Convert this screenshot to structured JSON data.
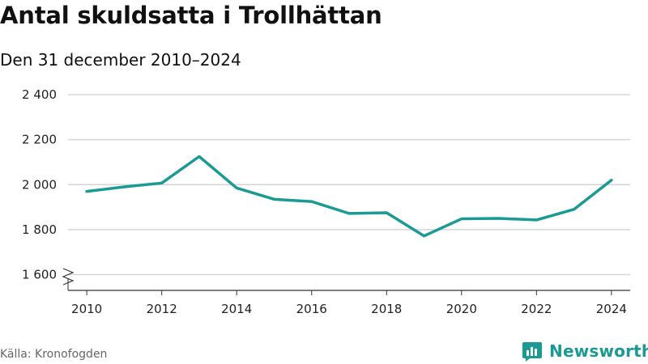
{
  "title": "Antal skuldsatta i Trollhättan",
  "subtitle": "Den 31 december 2010–2024",
  "source": "Källa: Kronofogden",
  "brand": {
    "name": "Newsworthy",
    "icon": "bar-chart-logo-icon",
    "color": "#1a9a93"
  },
  "chart_data": {
    "type": "line",
    "x": [
      2010,
      2011,
      2012,
      2013,
      2014,
      2015,
      2016,
      2017,
      2018,
      2019,
      2020,
      2021,
      2022,
      2023,
      2024
    ],
    "series": [
      {
        "values": [
          1970,
          1990,
          2007,
          2125,
          1985,
          1935,
          1925,
          1872,
          1875,
          1772,
          1848,
          1850,
          1843,
          1890,
          2020
        ]
      }
    ],
    "xticks": [
      2010,
      2012,
      2014,
      2016,
      2018,
      2020,
      2022,
      2024
    ],
    "yticks": [
      1600,
      1800,
      2000,
      2200,
      2400
    ],
    "ytick_labels": [
      "1 600",
      "1 800",
      "2 000",
      "2 200",
      "2 400"
    ],
    "xlim": [
      2009.5,
      2024.5
    ],
    "ylim": [
      1530,
      2400
    ],
    "y_axis_break": true,
    "grid": "horizontal",
    "line_color": "#1a9a93"
  }
}
